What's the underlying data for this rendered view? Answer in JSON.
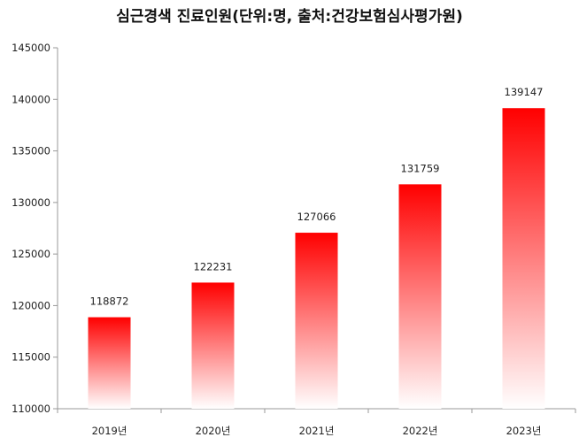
{
  "title": "심근경색 진료인원(단위:명, 출처:건강보험심사평가원)",
  "colors": {
    "bar_top": "#ff0000",
    "bar_bottom": "#ffffff",
    "axis": "#999999",
    "text": "#222222"
  },
  "chart_data": {
    "type": "bar",
    "title": "심근경색 진료인원(단위:명, 출처:건강보험심사평가원)",
    "xlabel": "",
    "ylabel": "",
    "categories": [
      "2019년",
      "2020년",
      "2021년",
      "2022년",
      "2023년"
    ],
    "values": [
      118872,
      122231,
      127066,
      131759,
      139147
    ],
    "data_labels": [
      "118872",
      "122231",
      "127066",
      "131759",
      "139147"
    ],
    "ylim": [
      110000,
      145000
    ],
    "yticks": [
      110000,
      115000,
      120000,
      125000,
      130000,
      135000,
      140000,
      145000
    ],
    "ytick_labels": [
      "110000",
      "115000",
      "120000",
      "125000",
      "130000",
      "135000",
      "140000",
      "145000"
    ],
    "grid": false,
    "legend": "none"
  }
}
